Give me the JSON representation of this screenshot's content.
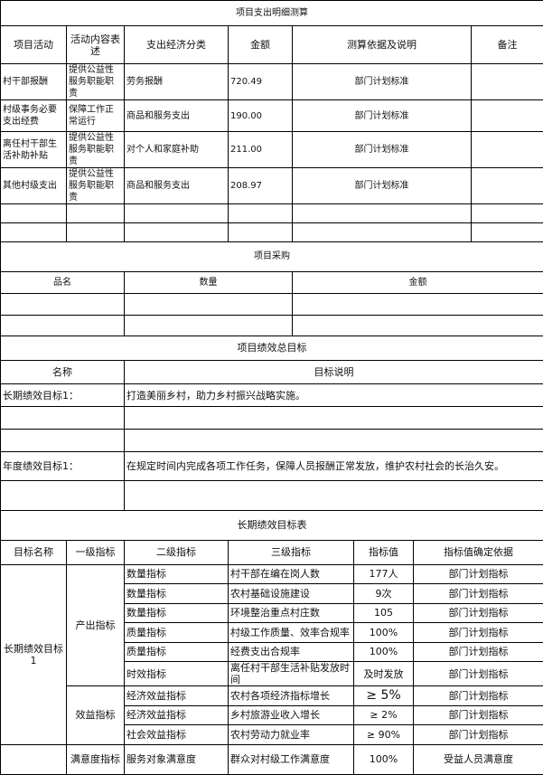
{
  "expense": {
    "title": "项目支出明细测算",
    "headers": [
      "项目活动",
      "活动内容表述",
      "支出经济分类",
      "金额",
      "测算依据及说明",
      "备注"
    ],
    "rows": [
      [
        "村干部报酬",
        "提供公益性服务职能职责",
        "劳务报酬",
        "720.49",
        "部门计划标准",
        ""
      ],
      [
        "村级事务必要支出经费",
        "保障工作正常运行",
        "商品和服务支出",
        "190.00",
        "部门计划标准",
        ""
      ],
      [
        "离任村干部生活补助补贴",
        "提供公益性服务职能职责",
        "对个人和家庭补助",
        "211.00",
        "部门计划标准",
        ""
      ],
      [
        "其他村级支出",
        "提供公益性服务职能职责",
        "商品和服务支出",
        "208.97",
        "部门计划标准",
        ""
      ]
    ]
  },
  "procurement": {
    "title": "项目采购",
    "headers": [
      "品名",
      "数量",
      "金额"
    ]
  },
  "overall": {
    "title": "项目绩效总目标",
    "headers": [
      "名称",
      "目标说明"
    ],
    "long_name": "长期绩效目标1：",
    "long_desc": "打造美丽乡村，助力乡村振兴战略实施。",
    "annual_name": "年度绩效目标1：",
    "annual_desc": "在规定时间内完成各项工作任务，保障人员报酬正常发放，维护农村社会的长治久安。"
  },
  "longterm": {
    "title": "长期绩效目标表",
    "headers": [
      "目标名称",
      "一级指标",
      "二级指标",
      "三级指标",
      "指标值",
      "指标值确定依据"
    ],
    "goal": "长期绩效目标1",
    "level1": [
      "产出指标",
      "效益指标",
      "满意度指标"
    ],
    "rows": [
      [
        "数量指标",
        "村干部在编在岗人数",
        "177人",
        "部门计划指标"
      ],
      [
        "数量指标",
        "农村基础设施建设",
        "9次",
        "部门计划指标"
      ],
      [
        "数量指标",
        "环境整治重点村庄数",
        "105",
        "部门计划指标"
      ],
      [
        "质量指标",
        "村级工作质量、效率合规率",
        "100%",
        "部门计划指标"
      ],
      [
        "质量指标",
        "经费支出合规率",
        "100%",
        "部门计划指标"
      ],
      [
        "时效指标",
        "离任村干部生活补贴发放时间",
        "及时发放",
        "部门计划指标"
      ],
      [
        "经济效益指标",
        "农村各项经济指标增长",
        "≥ 5%",
        "部门计划指标"
      ],
      [
        "经济效益指标",
        "乡村旅游业收入增长",
        "≥ 2%",
        "部门计划指标"
      ],
      [
        "社会效益指标",
        "农村劳动力就业率",
        "≥ 90%",
        "部门计划指标"
      ],
      [
        "服务对象满意度",
        "群众对村级工作满意度",
        "100%",
        "受益人员满意度"
      ]
    ]
  }
}
